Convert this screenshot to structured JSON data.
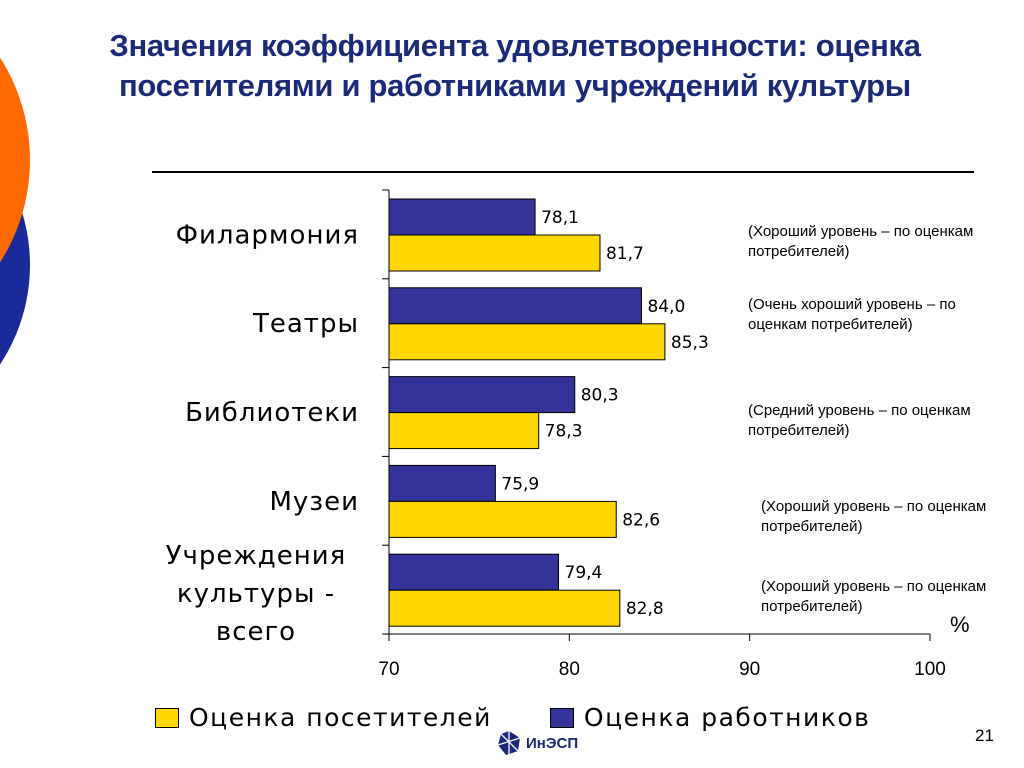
{
  "title": "Значения коэффициента удовлетворенности: оценка посетителями и работниками учреждений культуры",
  "colors": {
    "title": "#1a2a78",
    "visitors": "#ffd700",
    "workers": "#333399",
    "deco_orange": "#ff6a00",
    "deco_blue": "#1a2a98"
  },
  "chart_data": {
    "type": "bar",
    "orientation": "horizontal",
    "categories": [
      "Филармония",
      "Театры",
      "Библиотеки",
      "Музеи",
      "Учреждения культуры - всего"
    ],
    "series": [
      {
        "name": "Оценка работников",
        "color": "#333399",
        "values": [
          78.1,
          84.0,
          80.3,
          75.9,
          79.4
        ]
      },
      {
        "name": "Оценка посетителей",
        "color": "#ffd700",
        "values": [
          81.7,
          85.3,
          78.3,
          82.6,
          82.8
        ]
      }
    ],
    "value_labels": {
      "workers": [
        "78,1",
        "84,0",
        "80,3",
        "75,9",
        "79,4"
      ],
      "visitors": [
        "81,7",
        "85,3",
        "78,3",
        "82,6",
        "82,8"
      ]
    },
    "xlim": [
      70,
      100
    ],
    "x_ticks": [
      "70",
      "80",
      "90",
      "100"
    ],
    "unit": "%",
    "grid": false,
    "legend_position": "bottom",
    "annotations": [
      "(Хороший уровень – по оценкам потребителей)",
      "(Очень хороший уровень – по оценкам потребителей)",
      "(Средний уровень – по оценкам потребителей)",
      "(Хороший уровень – по оценкам потребителей)",
      "(Хороший уровень – по оценкам потребителей)"
    ]
  },
  "legend": {
    "visitors": "Оценка посетителей",
    "workers": "Оценка работников"
  },
  "page_number": "21",
  "logo_text": "ИнЭСП"
}
